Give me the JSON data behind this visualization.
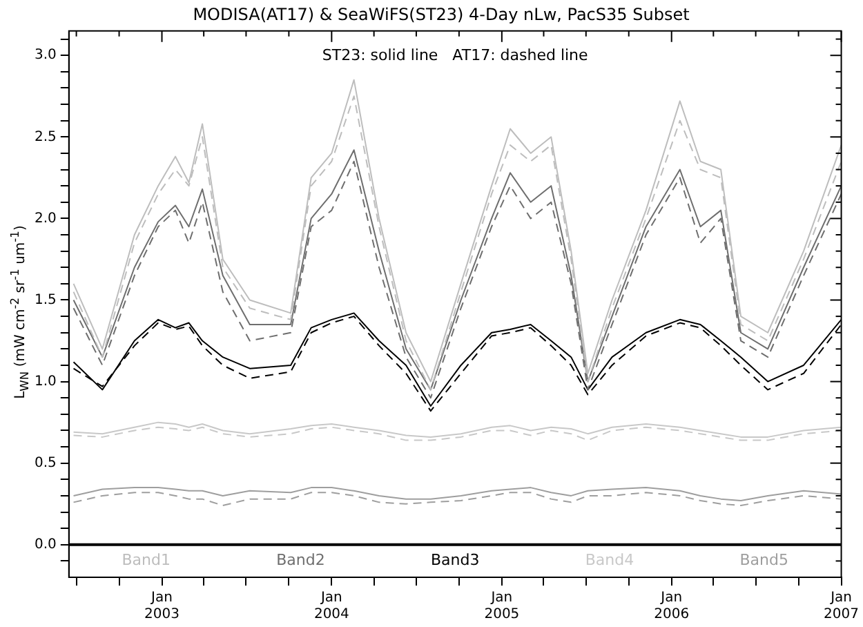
{
  "chart_data": {
    "type": "line",
    "title": "MODISA(AT17) & SeaWiFS(ST23) 4-Day nLw, PacS35 Subset",
    "ylabel": "L$_{WN}$ (mW cm$^{-2}$ sr$^{-1}$ um$^{-1}$)",
    "annotations": [
      "ST23: solid line   AT17: dashed line"
    ],
    "x": [
      "2002-06-25",
      "2002-08-26",
      "2002-11-03",
      "2002-12-24",
      "2003-01-30",
      "2003-02-28",
      "2003-03-29",
      "2003-05-12",
      "2003-07-09",
      "2003-10-05",
      "2003-11-18",
      "2004-01-01",
      "2004-02-18",
      "2004-04-12",
      "2004-06-09",
      "2004-08-01",
      "2004-10-05",
      "2004-12-10",
      "2005-01-19",
      "2005-03-04",
      "2005-04-17",
      "2005-05-30",
      "2005-07-05",
      "2005-08-26",
      "2005-11-07",
      "2006-01-19",
      "2006-03-04",
      "2006-04-17",
      "2006-05-30",
      "2006-07-27",
      "2006-10-12",
      "2007-01-01"
    ],
    "series": [
      {
        "name": "Band1",
        "color": "#bdbdbd",
        "line_style": "solid",
        "values": [
          1.6,
          1.2,
          1.9,
          2.2,
          2.38,
          2.22,
          2.58,
          1.75,
          1.5,
          1.42,
          2.25,
          2.4,
          2.85,
          2.0,
          1.3,
          1.0,
          1.6,
          2.2,
          2.55,
          2.4,
          2.5,
          1.8,
          1.05,
          1.5,
          2.05,
          2.72,
          2.35,
          2.3,
          1.4,
          1.3,
          1.8,
          2.45
        ]
      },
      {
        "color": "#bdbdbd",
        "line_style": "dashed",
        "values": [
          1.55,
          1.15,
          1.85,
          2.15,
          2.3,
          2.2,
          2.5,
          1.7,
          1.45,
          1.38,
          2.2,
          2.35,
          2.75,
          1.95,
          1.25,
          0.95,
          1.55,
          2.15,
          2.45,
          2.35,
          2.45,
          1.75,
          1.0,
          1.45,
          2.0,
          2.6,
          2.3,
          2.25,
          1.35,
          1.25,
          1.75,
          2.35
        ]
      },
      {
        "name": "Band2",
        "color": "#6e6e6e",
        "line_style": "solid",
        "values": [
          1.5,
          1.15,
          1.7,
          1.98,
          2.08,
          1.95,
          2.18,
          1.65,
          1.35,
          1.35,
          2.0,
          2.15,
          2.42,
          1.8,
          1.2,
          0.95,
          1.5,
          2.0,
          2.28,
          2.1,
          2.2,
          1.65,
          1.0,
          1.4,
          1.95,
          2.3,
          1.95,
          2.05,
          1.3,
          1.2,
          1.7,
          2.2
        ]
      },
      {
        "color": "#6e6e6e",
        "line_style": "dashed",
        "values": [
          1.45,
          1.1,
          1.65,
          1.95,
          2.05,
          1.85,
          2.1,
          1.55,
          1.25,
          1.3,
          1.95,
          2.05,
          2.35,
          1.7,
          1.15,
          0.9,
          1.45,
          1.95,
          2.2,
          2.0,
          2.1,
          1.6,
          0.95,
          1.35,
          1.9,
          2.25,
          1.85,
          2.0,
          1.25,
          1.15,
          1.65,
          2.15
        ]
      },
      {
        "name": "Band3",
        "color": "#000000",
        "line_style": "solid",
        "values": [
          1.12,
          0.95,
          1.25,
          1.38,
          1.33,
          1.36,
          1.25,
          1.15,
          1.08,
          1.1,
          1.33,
          1.38,
          1.42,
          1.25,
          1.1,
          0.85,
          1.1,
          1.3,
          1.32,
          1.35,
          1.25,
          1.15,
          0.95,
          1.15,
          1.3,
          1.38,
          1.35,
          1.25,
          1.15,
          1.0,
          1.1,
          1.38
        ]
      },
      {
        "color": "#000000",
        "line_style": "dashed",
        "values": [
          1.08,
          0.97,
          1.22,
          1.36,
          1.32,
          1.34,
          1.22,
          1.1,
          1.02,
          1.06,
          1.3,
          1.36,
          1.4,
          1.22,
          1.05,
          0.82,
          1.05,
          1.28,
          1.3,
          1.33,
          1.22,
          1.1,
          0.92,
          1.1,
          1.28,
          1.36,
          1.33,
          1.22,
          1.1,
          0.95,
          1.05,
          1.35
        ]
      },
      {
        "name": "Band4",
        "color": "#c8c8c8",
        "line_style": "solid",
        "values": [
          0.69,
          0.68,
          0.72,
          0.75,
          0.74,
          0.72,
          0.74,
          0.7,
          0.68,
          0.71,
          0.73,
          0.74,
          0.72,
          0.7,
          0.67,
          0.66,
          0.68,
          0.72,
          0.73,
          0.7,
          0.72,
          0.71,
          0.68,
          0.72,
          0.74,
          0.72,
          0.7,
          0.68,
          0.66,
          0.66,
          0.7,
          0.72
        ]
      },
      {
        "color": "#c8c8c8",
        "line_style": "dashed",
        "values": [
          0.67,
          0.66,
          0.7,
          0.72,
          0.71,
          0.7,
          0.72,
          0.68,
          0.66,
          0.68,
          0.71,
          0.72,
          0.7,
          0.68,
          0.64,
          0.64,
          0.66,
          0.7,
          0.7,
          0.67,
          0.7,
          0.68,
          0.64,
          0.7,
          0.72,
          0.7,
          0.68,
          0.66,
          0.64,
          0.64,
          0.68,
          0.7
        ]
      },
      {
        "name": "Band5",
        "color": "#9e9e9e",
        "line_style": "solid",
        "values": [
          0.3,
          0.34,
          0.35,
          0.35,
          0.34,
          0.33,
          0.33,
          0.3,
          0.33,
          0.32,
          0.35,
          0.35,
          0.33,
          0.3,
          0.28,
          0.28,
          0.3,
          0.33,
          0.34,
          0.35,
          0.32,
          0.3,
          0.33,
          0.34,
          0.35,
          0.33,
          0.3,
          0.28,
          0.27,
          0.3,
          0.33,
          0.31
        ]
      },
      {
        "color": "#9e9e9e",
        "line_style": "dashed",
        "values": [
          0.26,
          0.3,
          0.32,
          0.32,
          0.3,
          0.28,
          0.28,
          0.24,
          0.28,
          0.28,
          0.32,
          0.32,
          0.3,
          0.26,
          0.25,
          0.26,
          0.27,
          0.3,
          0.32,
          0.32,
          0.28,
          0.26,
          0.3,
          0.3,
          0.32,
          0.3,
          0.27,
          0.25,
          0.24,
          0.27,
          0.3,
          0.28
        ]
      }
    ],
    "xlim": [
      "2002-06-15",
      "2007-01-01"
    ],
    "xticks": [
      {
        "value": "2002-07-01",
        "label": null
      },
      {
        "value": "2002-10-01",
        "label": null
      },
      {
        "value": "2003-01-01",
        "label": "Jan 2003"
      },
      {
        "value": "2003-04-01",
        "label": null
      },
      {
        "value": "2003-07-01",
        "label": null
      },
      {
        "value": "2003-10-01",
        "label": null
      },
      {
        "value": "2004-01-01",
        "label": "Jan 2004"
      },
      {
        "value": "2004-04-01",
        "label": null
      },
      {
        "value": "2004-07-01",
        "label": null
      },
      {
        "value": "2004-10-01",
        "label": null
      },
      {
        "value": "2005-01-01",
        "label": "Jan 2005"
      },
      {
        "value": "2005-04-01",
        "label": null
      },
      {
        "value": "2005-07-01",
        "label": null
      },
      {
        "value": "2005-10-01",
        "label": null
      },
      {
        "value": "2006-01-01",
        "label": "Jan 2006"
      },
      {
        "value": "2006-04-01",
        "label": null
      },
      {
        "value": "2006-07-01",
        "label": null
      },
      {
        "value": "2006-10-01",
        "label": null
      },
      {
        "value": "2007-01-01",
        "label": "Jan 2007"
      }
    ],
    "ylim": [
      -0.2,
      3.15
    ],
    "yticks": [
      {
        "value": -0.1,
        "label": null
      },
      {
        "value": 0,
        "label": "0.0"
      },
      {
        "value": 0.1,
        "label": null
      },
      {
        "value": 0.2,
        "label": null
      },
      {
        "value": 0.3,
        "label": null
      },
      {
        "value": 0.4,
        "label": null
      },
      {
        "value": 0.5,
        "label": "0.5"
      },
      {
        "value": 0.6,
        "label": null
      },
      {
        "value": 0.7,
        "label": null
      },
      {
        "value": 0.8,
        "label": null
      },
      {
        "value": 0.9,
        "label": null
      },
      {
        "value": 1,
        "label": "1.0"
      },
      {
        "value": 1.1,
        "label": null
      },
      {
        "value": 1.2,
        "label": null
      },
      {
        "value": 1.3,
        "label": null
      },
      {
        "value": 1.4,
        "label": null
      },
      {
        "value": 1.5,
        "label": "1.5"
      },
      {
        "value": 1.6,
        "label": null
      },
      {
        "value": 1.7,
        "label": null
      },
      {
        "value": 1.8,
        "label": null
      },
      {
        "value": 1.9,
        "label": null
      },
      {
        "value": 2,
        "label": "2.0"
      },
      {
        "value": 2.1,
        "label": null
      },
      {
        "value": 2.2,
        "label": null
      },
      {
        "value": 2.3,
        "label": null
      },
      {
        "value": 2.4,
        "label": null
      },
      {
        "value": 2.5,
        "label": "2.5"
      },
      {
        "value": 2.6,
        "label": null
      },
      {
        "value": 2.7,
        "label": null
      },
      {
        "value": 2.8,
        "label": null
      },
      {
        "value": 2.9,
        "label": null
      },
      {
        "value": 3,
        "label": "3.0"
      },
      {
        "value": 3.1,
        "label": null
      }
    ],
    "ref_lines": [
      {
        "axis": "y",
        "value": 0,
        "color": "#000000"
      }
    ],
    "grid": false,
    "legend": false,
    "marker": "none"
  }
}
